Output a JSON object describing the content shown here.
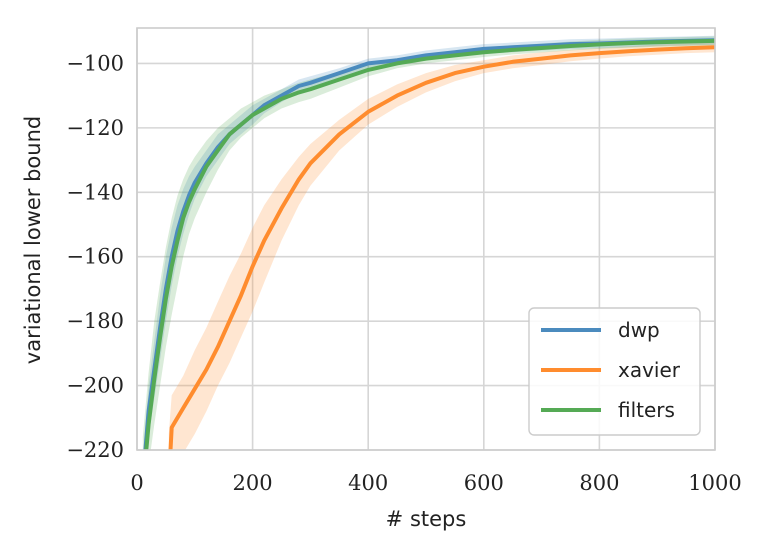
{
  "chart_data": {
    "type": "line",
    "xlabel": "# steps",
    "ylabel": "variational lower bound",
    "xlim": [
      0,
      1000
    ],
    "ylim": [
      -220,
      -89
    ],
    "xticks": [
      0,
      200,
      400,
      600,
      800,
      1000
    ],
    "yticks": [
      -100,
      -120,
      -140,
      -160,
      -180,
      -200,
      -220
    ],
    "xtick_labels": [
      "0",
      "200",
      "400",
      "600",
      "800",
      "1000"
    ],
    "ytick_labels": [
      "−100",
      "−120",
      "−140",
      "−160",
      "−180",
      "−200",
      "−220"
    ],
    "grid": true,
    "legend_position": "bottom-right",
    "series": [
      {
        "name": "dwp",
        "color": "#4b8bbe",
        "x": [
          10,
          20,
          30,
          40,
          50,
          60,
          70,
          80,
          90,
          100,
          120,
          140,
          160,
          180,
          200,
          220,
          250,
          280,
          300,
          350,
          400,
          450,
          500,
          550,
          600,
          650,
          700,
          750,
          800,
          850,
          900,
          950,
          1000
        ],
        "y": [
          -230,
          -208,
          -195,
          -182,
          -170,
          -160,
          -152,
          -146,
          -141,
          -137,
          -131,
          -126,
          -122,
          -119,
          -116,
          -113,
          -110,
          -107,
          -106,
          -103,
          -100,
          -99,
          -97.5,
          -96.5,
          -95.5,
          -95,
          -94.5,
          -94,
          -93.8,
          -93.5,
          -93.2,
          -93,
          -92.8
        ],
        "upper": [
          -222,
          -200,
          -186,
          -172,
          -160,
          -151,
          -144,
          -139,
          -135,
          -132,
          -127,
          -122,
          -119,
          -116,
          -113,
          -111,
          -108,
          -105,
          -104,
          -101.5,
          -98.5,
          -97.5,
          -96,
          -95,
          -94,
          -93.5,
          -93,
          -92.5,
          -92.3,
          -92,
          -91.8,
          -91.6,
          -91.4
        ],
        "lower": [
          -238,
          -216,
          -204,
          -192,
          -180,
          -169,
          -160,
          -153,
          -147,
          -142,
          -135,
          -130,
          -125,
          -122,
          -119,
          -115.5,
          -112,
          -109,
          -108,
          -104.5,
          -101.5,
          -100.5,
          -99,
          -98,
          -97,
          -96.5,
          -96,
          -95.5,
          -95.3,
          -95,
          -94.6,
          -94.4,
          -94.2
        ]
      },
      {
        "name": "xavier",
        "color": "#ff8c2e",
        "x": [
          55,
          60,
          80,
          100,
          120,
          140,
          160,
          180,
          200,
          220,
          250,
          280,
          300,
          350,
          400,
          450,
          500,
          550,
          600,
          650,
          700,
          750,
          800,
          850,
          900,
          950,
          1000
        ],
        "y": [
          -230,
          -213,
          -207,
          -201,
          -195,
          -188,
          -180,
          -172,
          -163,
          -155,
          -145,
          -136,
          -131,
          -122,
          -115,
          -110,
          -106,
          -103,
          -101,
          -99.5,
          -98.5,
          -97.5,
          -96.8,
          -96.2,
          -95.7,
          -95.3,
          -95
        ],
        "upper": [
          -215,
          -203,
          -197,
          -189,
          -182,
          -174,
          -166,
          -159,
          -151,
          -144,
          -136,
          -129,
          -125,
          -117.5,
          -111,
          -106.5,
          -103,
          -100.5,
          -99,
          -97.5,
          -96.5,
          -95.8,
          -95.2,
          -94.7,
          -94.2,
          -93.8,
          -93.5
        ],
        "lower": [
          -240,
          -224,
          -221,
          -215,
          -208,
          -200,
          -193,
          -185,
          -177,
          -168,
          -155,
          -144,
          -138,
          -127,
          -119,
          -113.5,
          -109,
          -105.5,
          -103,
          -101.5,
          -100.5,
          -99.3,
          -98.5,
          -97.8,
          -97.3,
          -96.8,
          -96.5
        ]
      },
      {
        "name": "filters",
        "color": "#55aa55",
        "x": [
          10,
          20,
          30,
          40,
          50,
          60,
          70,
          80,
          90,
          100,
          120,
          140,
          160,
          180,
          200,
          220,
          250,
          280,
          300,
          350,
          400,
          450,
          500,
          550,
          600,
          650,
          700,
          750,
          800,
          850,
          900,
          950,
          1000
        ],
        "y": [
          -232,
          -212,
          -198,
          -185,
          -173,
          -163,
          -155,
          -148,
          -143,
          -139,
          -132,
          -127,
          -122,
          -119,
          -116,
          -114,
          -111,
          -109,
          -108,
          -105,
          -102,
          -100,
          -98.5,
          -97.5,
          -96.5,
          -95.8,
          -95.2,
          -94.6,
          -94.1,
          -93.7,
          -93.4,
          -93.2,
          -93
        ],
        "upper": [
          -216,
          -196,
          -180,
          -168,
          -157,
          -148,
          -141,
          -136,
          -132,
          -129,
          -124,
          -120,
          -117,
          -114,
          -112,
          -110,
          -108,
          -106,
          -105,
          -102.5,
          -100,
          -98.5,
          -97,
          -96,
          -95,
          -94.4,
          -93.8,
          -93.2,
          -92.7,
          -92.3,
          -92,
          -91.8,
          -91.6
        ],
        "lower": [
          -245,
          -225,
          -212,
          -200,
          -188,
          -178,
          -169,
          -160,
          -153,
          -148,
          -140,
          -133,
          -127,
          -123,
          -120,
          -117,
          -114,
          -112,
          -111,
          -107.5,
          -104,
          -101.5,
          -100,
          -99,
          -98,
          -97.2,
          -96.6,
          -96,
          -95.5,
          -95.1,
          -94.8,
          -94.6,
          -94.4
        ]
      }
    ]
  }
}
